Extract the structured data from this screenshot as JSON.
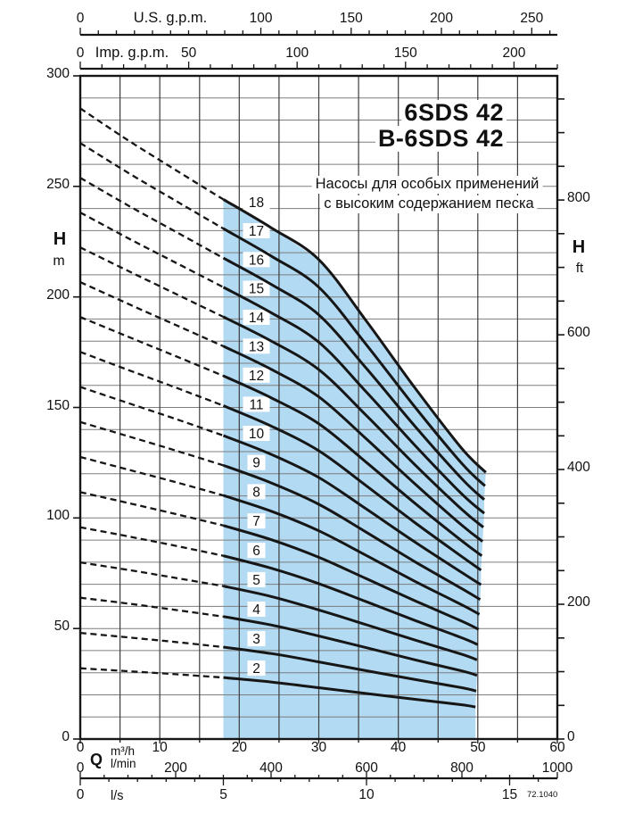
{
  "page": {
    "background": "#ffffff"
  },
  "colors": {
    "curve": "#161616",
    "grid_v": "#3c3c3c",
    "grid_h": "#7d7d7d",
    "region": "#b2daf2",
    "text": "#111111"
  },
  "title": {
    "line1": "6SDS 42",
    "line2": "B-6SDS 42"
  },
  "subtitle": {
    "line1": "Насосы для особых применений",
    "line2": "с высоким содержанием песка"
  },
  "labels": {
    "us_gpm": "U.S. g.p.m.",
    "imp_gpm": "Imp. g.p.m.",
    "head_symbol": "H",
    "unit_m": "m",
    "unit_ft": "ft",
    "flow_symbol": "Q",
    "unit_m3h": "m³/h",
    "unit_lmin": "l/min",
    "unit_ls": "l/s",
    "code": "72.1040"
  },
  "chart_data": {
    "type": "line",
    "title": "6SDS 42 / B-6SDS 42",
    "subtitle": "Насосы для особых применений с высоким содержанием песка",
    "xlabel": "Q",
    "ylabel": "H",
    "grid": {
      "x_step_m3h": 5,
      "y_step_m": 10
    },
    "x_axes": [
      {
        "id": "us_gpm",
        "unit": "U.S. g.p.m.",
        "tick_labels": [
          0,
          100,
          150,
          200,
          250
        ],
        "minor_step": 10,
        "max": 260
      },
      {
        "id": "imp_gpm",
        "unit": "Imp. g.p.m.",
        "tick_labels": [
          0,
          50,
          100,
          150,
          200
        ],
        "minor_step": 10,
        "max": 220
      },
      {
        "id": "q_m3h",
        "unit": "m³/h",
        "tick_labels": [
          0,
          10,
          20,
          30,
          40,
          50,
          60
        ],
        "minor_step": 5,
        "max": 60
      },
      {
        "id": "q_lmin",
        "unit": "l/min",
        "tick_labels": [
          0,
          200,
          400,
          600,
          800,
          1000
        ],
        "minor_step": 50,
        "max": 1000
      },
      {
        "id": "q_ls",
        "unit": "l/s",
        "tick_labels": [
          0,
          5,
          10,
          15
        ],
        "minor_step": 1,
        "max": 16
      }
    ],
    "y_axes": [
      {
        "id": "h_m",
        "unit": "m",
        "tick_labels": [
          300,
          250,
          200,
          150,
          100,
          50,
          0
        ],
        "range": [
          0,
          300
        ],
        "tick_step": 50
      },
      {
        "id": "h_ft",
        "unit": "ft",
        "tick_labels": [
          800,
          600,
          400,
          200,
          0
        ],
        "tick_step": 50,
        "max": 950
      }
    ],
    "operating_range_m3h": [
      18,
      51
    ],
    "dashed_below_q_m3h": 18,
    "q_grid_m3h": [
      0,
      6,
      12,
      18,
      24,
      30,
      36,
      42,
      48
    ],
    "curves": [
      {
        "stage": 2,
        "label": "2",
        "q_end_m3h": 49.7,
        "end_head_m": 14.5,
        "head_m": [
          32.0,
          30.7,
          29.3,
          27.8,
          25.8,
          23.2,
          20.6,
          18.0,
          15.5
        ]
      },
      {
        "stage": 3,
        "label": "3",
        "q_end_m3h": 49.8,
        "end_head_m": 21.7,
        "head_m": [
          48.0,
          46.0,
          43.9,
          41.6,
          38.7,
          34.9,
          30.9,
          27.0,
          23.2
        ]
      },
      {
        "stage": 4,
        "label": "4",
        "q_end_m3h": 49.9,
        "end_head_m": 28.8,
        "head_m": [
          63.9,
          61.3,
          58.4,
          55.4,
          51.6,
          46.6,
          41.3,
          35.9,
          30.8
        ]
      },
      {
        "stage": 5,
        "label": "5",
        "q_end_m3h": 49.9,
        "end_head_m": 35.8,
        "head_m": [
          79.9,
          76.5,
          72.9,
          69.2,
          64.5,
          58.4,
          51.7,
          44.9,
          38.3
        ]
      },
      {
        "stage": 6,
        "label": "6",
        "q_end_m3h": 50.0,
        "end_head_m": 42.7,
        "head_m": [
          95.8,
          91.7,
          87.4,
          82.9,
          77.3,
          70.3,
          62.1,
          53.8,
          45.8
        ]
      },
      {
        "stage": 7,
        "label": "7",
        "q_end_m3h": 50.1,
        "end_head_m": 49.6,
        "head_m": [
          111.7,
          106.8,
          101.8,
          96.6,
          90.2,
          82.2,
          72.5,
          62.7,
          53.3
        ]
      },
      {
        "stage": 8,
        "label": "8",
        "q_end_m3h": 50.2,
        "end_head_m": 56.4,
        "head_m": [
          127.6,
          121.9,
          116.2,
          110.2,
          103.1,
          94.2,
          83.0,
          71.5,
          60.7
        ]
      },
      {
        "stage": 9,
        "label": "9",
        "q_end_m3h": 50.3,
        "end_head_m": 63.1,
        "head_m": [
          143.4,
          137.0,
          130.5,
          123.8,
          115.9,
          106.2,
          93.5,
          80.4,
          68.0
        ]
      },
      {
        "stage": 10,
        "label": "10",
        "q_end_m3h": 50.4,
        "end_head_m": 69.8,
        "head_m": [
          159.3,
          152.0,
          144.8,
          137.3,
          128.8,
          118.3,
          104.0,
          89.3,
          75.3
        ]
      },
      {
        "stage": 11,
        "label": "11",
        "q_end_m3h": 50.4,
        "end_head_m": 76.4,
        "head_m": [
          175.1,
          167.0,
          159.0,
          150.8,
          141.6,
          130.4,
          114.5,
          98.1,
          82.5
        ]
      },
      {
        "stage": 12,
        "label": "12",
        "q_end_m3h": 50.5,
        "end_head_m": 82.9,
        "head_m": [
          190.9,
          182.0,
          173.2,
          164.3,
          154.4,
          142.6,
          125.1,
          106.9,
          89.6
        ]
      },
      {
        "stage": 13,
        "label": "13",
        "q_end_m3h": 50.6,
        "end_head_m": 89.4,
        "head_m": [
          206.7,
          196.9,
          187.3,
          177.7,
          167.3,
          154.8,
          135.7,
          115.7,
          96.7
        ]
      },
      {
        "stage": 14,
        "label": "14",
        "q_end_m3h": 50.7,
        "end_head_m": 95.8,
        "head_m": [
          222.4,
          211.8,
          201.4,
          191.0,
          180.1,
          167.1,
          146.3,
          124.4,
          103.8
        ]
      },
      {
        "stage": 15,
        "label": "15",
        "q_end_m3h": 50.8,
        "end_head_m": 102.1,
        "head_m": [
          238.2,
          226.6,
          215.5,
          204.4,
          192.9,
          179.5,
          156.9,
          133.2,
          110.8
        ]
      },
      {
        "stage": 16,
        "label": "16",
        "q_end_m3h": 50.8,
        "end_head_m": 108.3,
        "head_m": [
          253.9,
          241.4,
          229.5,
          217.6,
          205.7,
          191.9,
          167.6,
          141.9,
          117.7
        ]
      },
      {
        "stage": 17,
        "label": "17",
        "q_end_m3h": 50.9,
        "end_head_m": 114.5,
        "head_m": [
          269.6,
          256.2,
          243.5,
          230.9,
          218.5,
          204.4,
          178.3,
          150.6,
          124.6
        ]
      },
      {
        "stage": 18,
        "label": "18",
        "q_end_m3h": 51.0,
        "end_head_m": 120.6,
        "head_m": [
          285.3,
          270.9,
          257.4,
          244.1,
          231.3,
          216.9,
          189.0,
          159.3,
          131.4
        ]
      }
    ]
  }
}
